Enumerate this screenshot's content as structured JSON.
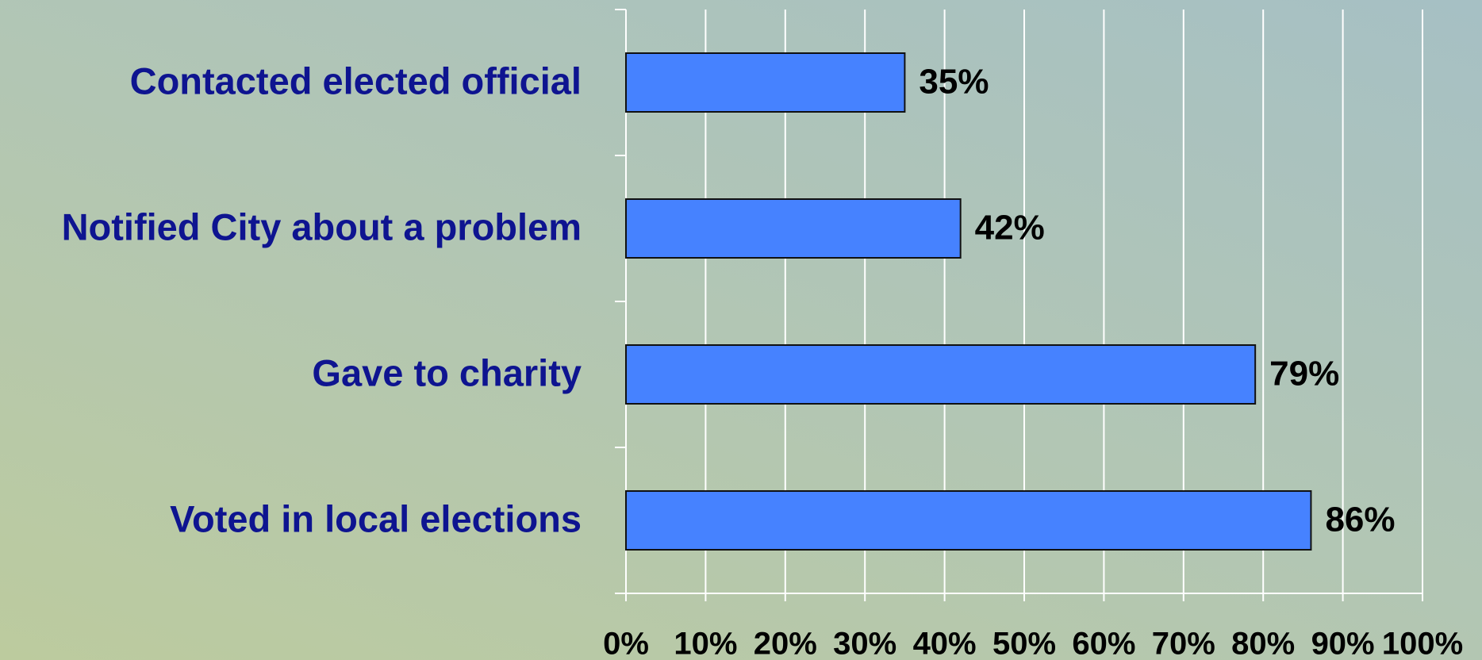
{
  "chart_data": {
    "type": "hbar",
    "categories": [
      "Contacted elected official",
      "Notified City about a problem",
      "Gave to charity",
      "Voted in local elections"
    ],
    "values": [
      35,
      42,
      79,
      86
    ],
    "value_labels": [
      "35%",
      "42%",
      "79%",
      "86%"
    ],
    "color": "#4682ff",
    "xlim": [
      0,
      100
    ],
    "xticks": [
      {
        "value": 0,
        "label": "0%"
      },
      {
        "value": 10,
        "label": "10%"
      },
      {
        "value": 20,
        "label": "20%"
      },
      {
        "value": 30,
        "label": "30%"
      },
      {
        "value": 40,
        "label": "40%"
      },
      {
        "value": 50,
        "label": "50%"
      },
      {
        "value": 60,
        "label": "60%"
      },
      {
        "value": 70,
        "label": "70%"
      },
      {
        "value": 80,
        "label": "80%"
      },
      {
        "value": 90,
        "label": "90%"
      },
      {
        "value": 100,
        "label": "100%"
      }
    ],
    "grid": true
  }
}
